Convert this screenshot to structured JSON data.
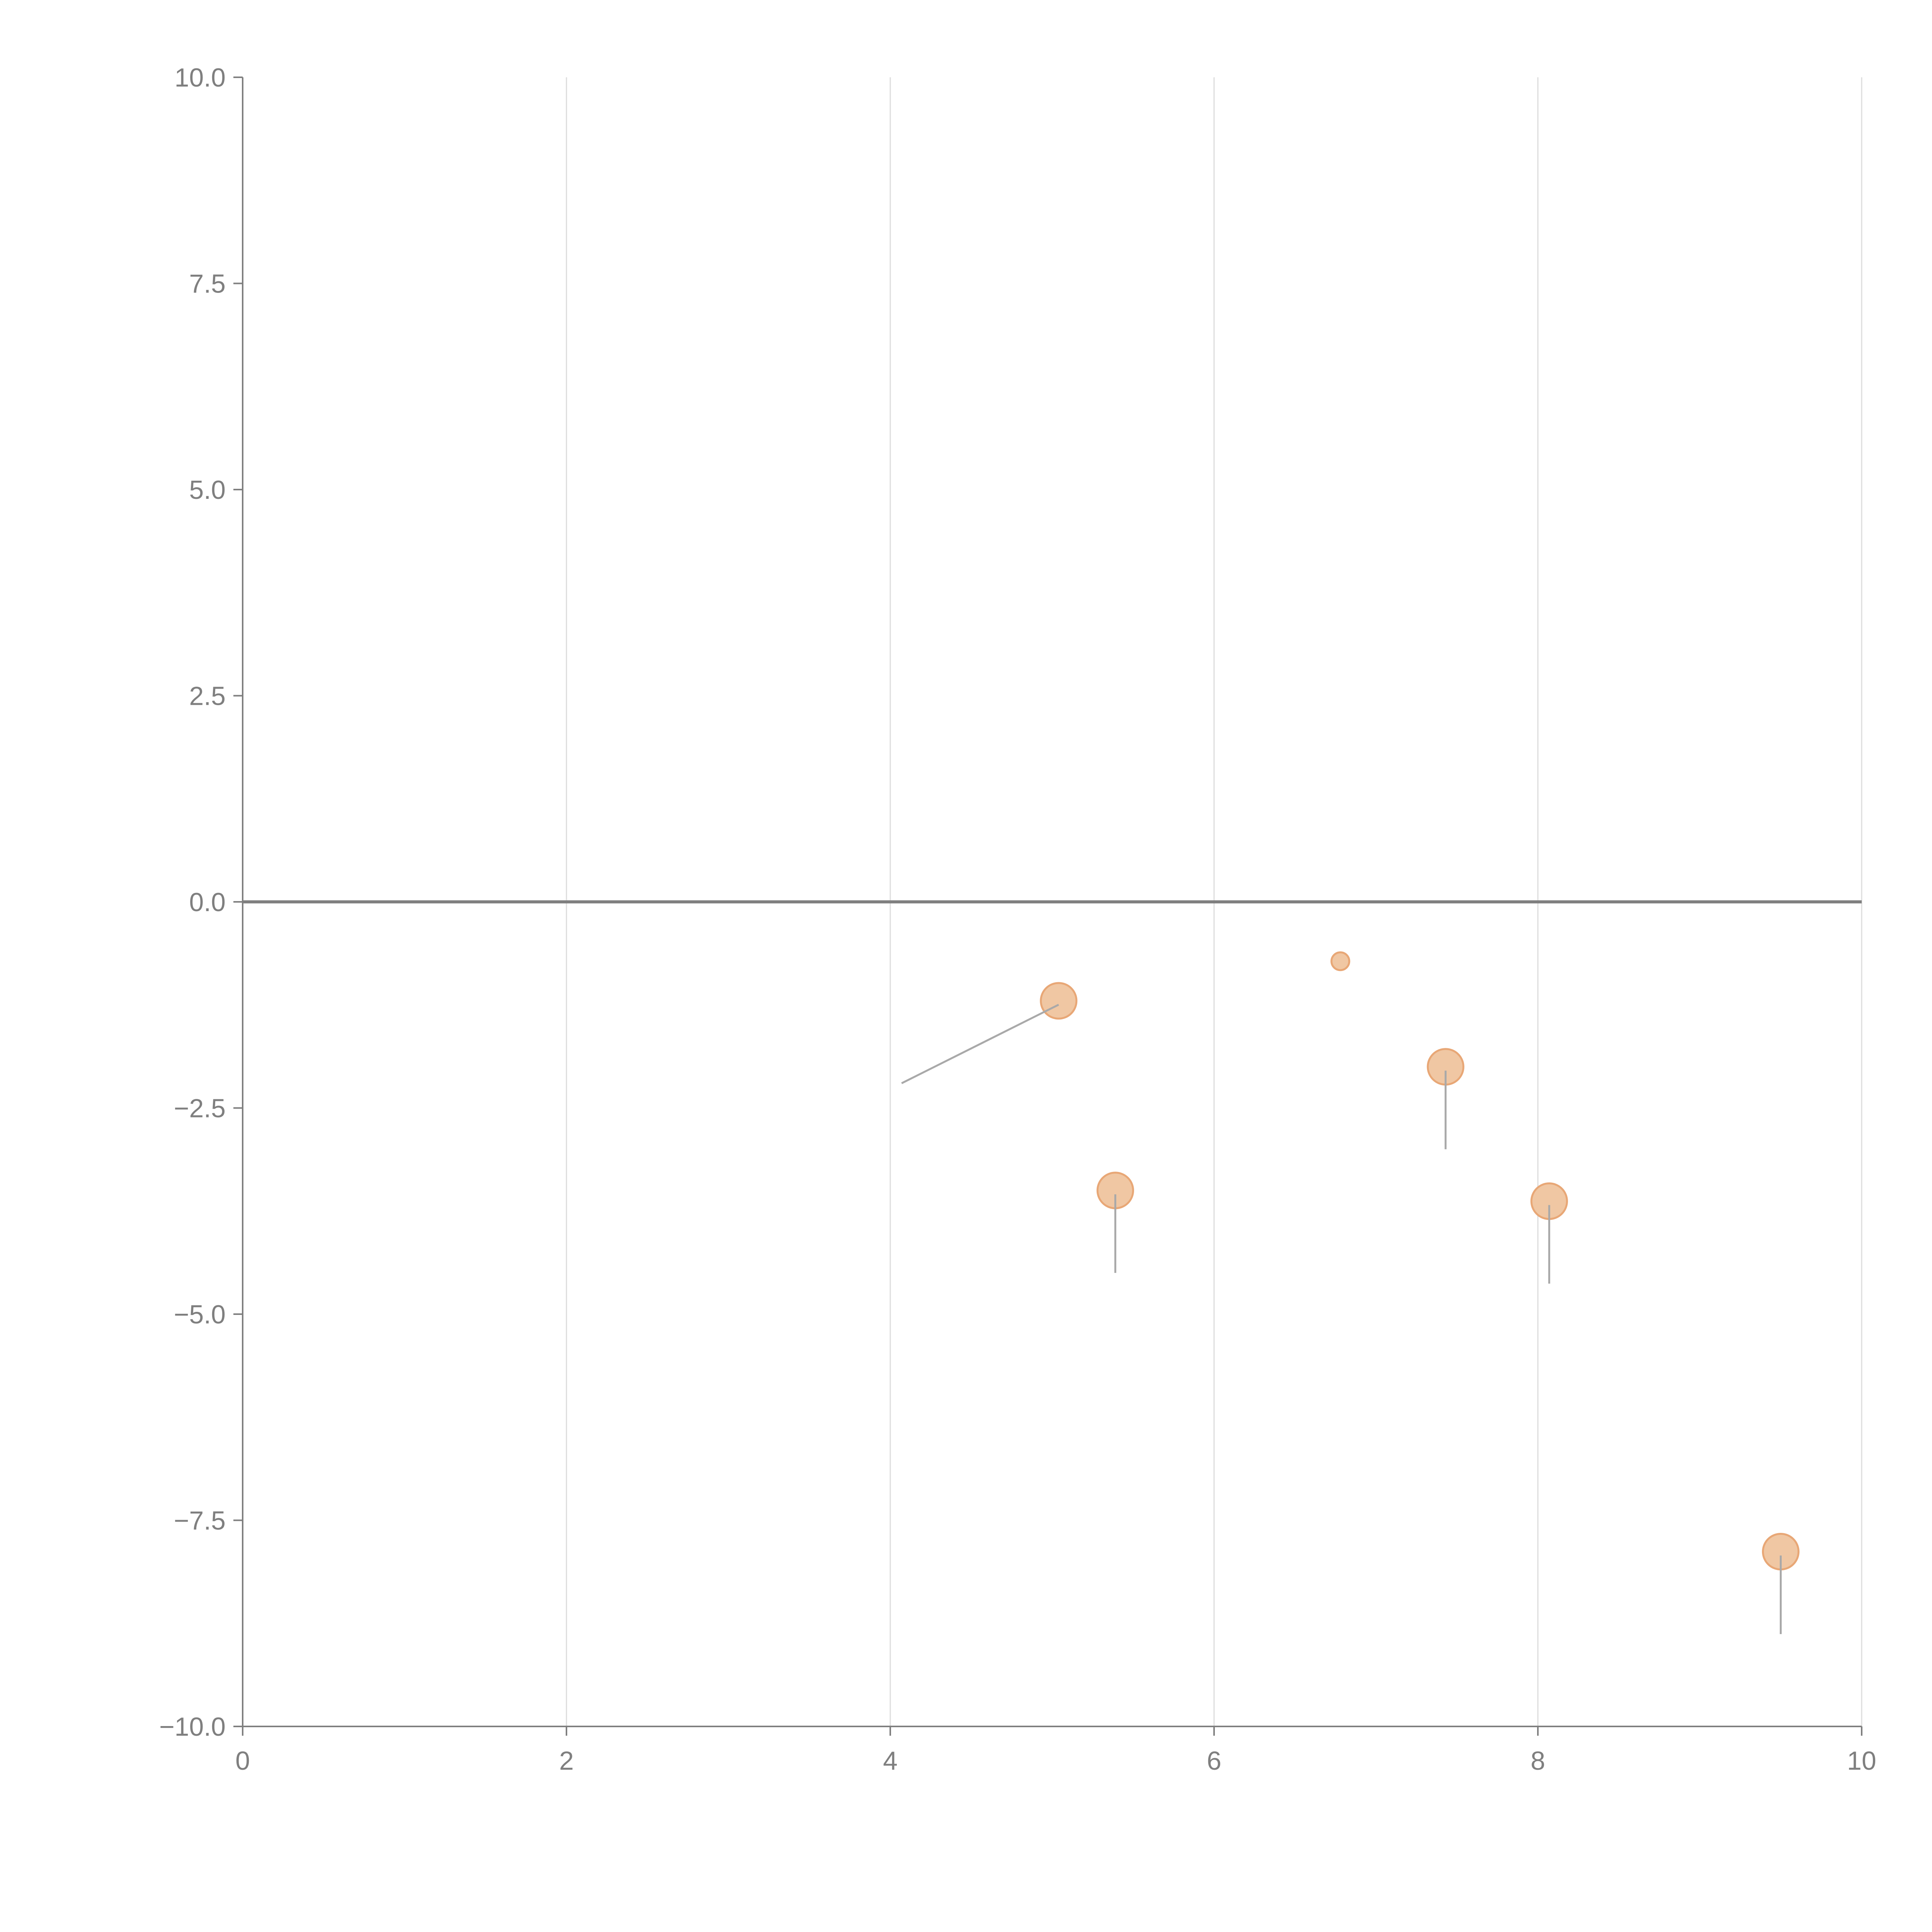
{
  "chart_data": {
    "type": "scatter",
    "title": "",
    "xlabel": "",
    "ylabel": "",
    "xlim": [
      0,
      10
    ],
    "ylim": [
      -10,
      10
    ],
    "x_ticks": [
      0,
      2,
      4,
      6,
      8,
      10
    ],
    "x_tick_labels": [
      "0",
      "2",
      "4",
      "6",
      "8",
      "10"
    ],
    "y_ticks": [
      10,
      7.5,
      5,
      2.5,
      0,
      -2.5,
      -5,
      -7.5,
      -10
    ],
    "y_tick_labels": [
      "10.0",
      "7.5",
      "5.0",
      "2.5",
      "0.0",
      "−2.5",
      "−5.0",
      "−7.5",
      "−10.0"
    ],
    "vertical_grid": true,
    "zero_line": true,
    "bubble_color": "#f0c7a3",
    "bubble_edge_color": "#e8a776",
    "points": [
      {
        "x": 5.04,
        "y": -1.2,
        "size": 0.22,
        "leader_to": {
          "x": 4.07,
          "y": -2.2
        }
      },
      {
        "x": 6.78,
        "y": -0.72,
        "size": 0.11
      },
      {
        "x": 5.39,
        "y": -3.5,
        "size": 0.22,
        "leader_to": {
          "x": 5.39,
          "y": -4.5
        }
      },
      {
        "x": 7.43,
        "y": -2.0,
        "size": 0.22,
        "leader_to": {
          "x": 7.43,
          "y": -3.0
        }
      },
      {
        "x": 8.07,
        "y": -3.63,
        "size": 0.22,
        "leader_to": {
          "x": 8.07,
          "y": -4.63
        }
      },
      {
        "x": 9.5,
        "y": -7.88,
        "size": 0.22,
        "leader_to": {
          "x": 9.5,
          "y": -8.88
        }
      }
    ]
  }
}
